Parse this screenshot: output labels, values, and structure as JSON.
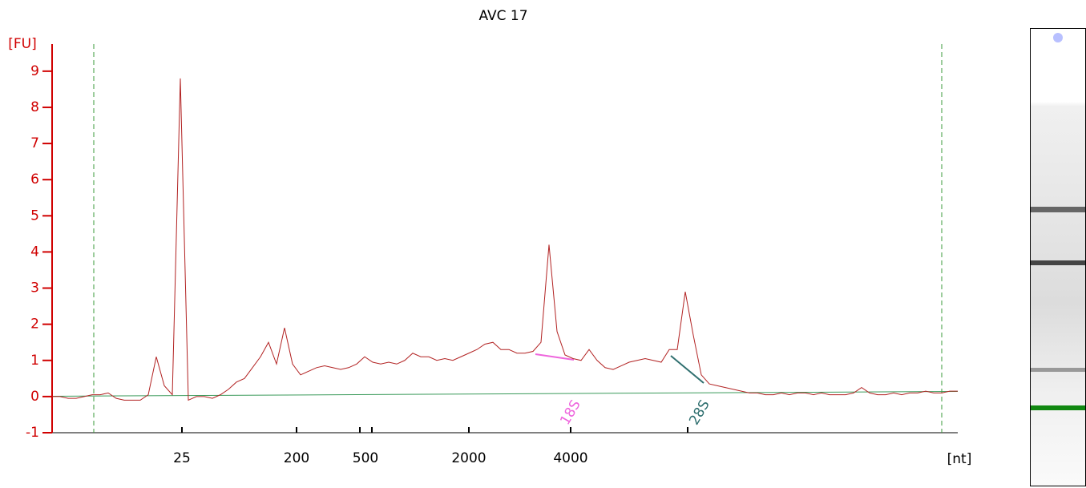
{
  "chart_data": {
    "type": "line",
    "title": "AVC 17",
    "y_label": "[FU]",
    "x_label": "[nt]",
    "x": [
      0,
      1,
      2,
      3,
      4,
      5,
      6,
      7,
      8,
      9,
      10,
      11,
      12,
      13,
      14,
      15,
      16,
      17,
      18,
      19,
      20,
      21,
      22,
      23,
      24,
      25,
      26,
      27,
      28,
      29,
      30,
      31,
      32,
      33,
      34,
      35,
      36,
      37,
      38,
      39,
      40,
      41,
      42,
      43,
      44,
      45,
      46,
      47,
      48,
      49,
      50,
      51,
      52,
      53,
      54,
      55,
      56,
      57,
      58,
      59,
      60,
      61,
      62,
      63,
      64,
      65,
      66,
      67,
      68,
      69,
      70,
      71,
      72,
      73,
      74,
      75,
      76,
      77,
      78,
      79,
      80,
      81,
      82,
      83,
      84,
      85,
      86,
      87,
      88,
      89,
      90,
      91,
      92,
      93,
      94,
      95,
      96,
      97,
      98,
      99,
      100,
      101,
      102,
      103,
      104,
      105,
      106,
      107,
      108,
      109,
      110,
      111,
      112,
      113
    ],
    "series": [
      {
        "color": "#b22222",
        "values": [
          0,
          0,
          -0.05,
          -0.05,
          0,
          0.05,
          0.05,
          0.1,
          -0.05,
          -0.1,
          -0.1,
          -0.1,
          0.05,
          1.1,
          0.3,
          0.05,
          8.8,
          -0.1,
          0,
          0,
          -0.05,
          0.05,
          0.2,
          0.4,
          0.5,
          0.8,
          1.1,
          1.5,
          0.9,
          1.9,
          0.9,
          0.6,
          0.7,
          0.8,
          0.85,
          0.8,
          0.75,
          0.8,
          0.9,
          1.1,
          0.95,
          0.9,
          0.95,
          0.9,
          1.0,
          1.2,
          1.1,
          1.1,
          1.0,
          1.05,
          1.0,
          1.1,
          1.2,
          1.3,
          1.45,
          1.5,
          1.3,
          1.3,
          1.2,
          1.2,
          1.25,
          1.5,
          4.2,
          1.8,
          1.15,
          1.05,
          1.0,
          1.3,
          1.0,
          0.8,
          0.75,
          0.85,
          0.95,
          1.0,
          1.05,
          1.0,
          0.95,
          1.3,
          1.3,
          2.9,
          1.7,
          0.6,
          0.35,
          0.3,
          0.25,
          0.2,
          0.15,
          0.1,
          0.1,
          0.05,
          0.05,
          0.1,
          0.05,
          0.1,
          0.1,
          0.05,
          0.1,
          0.05,
          0.05,
          0.05,
          0.1,
          0.25,
          0.1,
          0.05,
          0.05,
          0.1,
          0.05,
          0.1,
          0.1,
          0.15,
          0.1,
          0.1,
          0.15,
          0.15
        ]
      }
    ],
    "xlim": [
      0,
      113
    ],
    "ylim": [
      -1,
      9.75
    ],
    "yticks": [
      -1,
      0,
      1,
      2,
      3,
      4,
      5,
      6,
      7,
      8,
      9
    ],
    "xticks": [
      {
        "value": 16.2,
        "label": "25"
      },
      {
        "value": 30.5,
        "label": "200"
      },
      {
        "value": 38.4,
        "label": "500"
      },
      {
        "value": 39.9,
        "label": null
      },
      {
        "value": 52.0,
        "label": "2000"
      },
      {
        "value": 64.7,
        "label": "4000"
      },
      {
        "value": 79.3,
        "label": null
      }
    ],
    "markers": [
      5.2,
      111
    ],
    "annotations": [
      {
        "text": "18S",
        "x": 64.7,
        "color": "#ee66dd"
      },
      {
        "text": "28S",
        "x": 80.8,
        "color": "#2f6f6f"
      }
    ],
    "axis_color": "#d00000"
  }
}
